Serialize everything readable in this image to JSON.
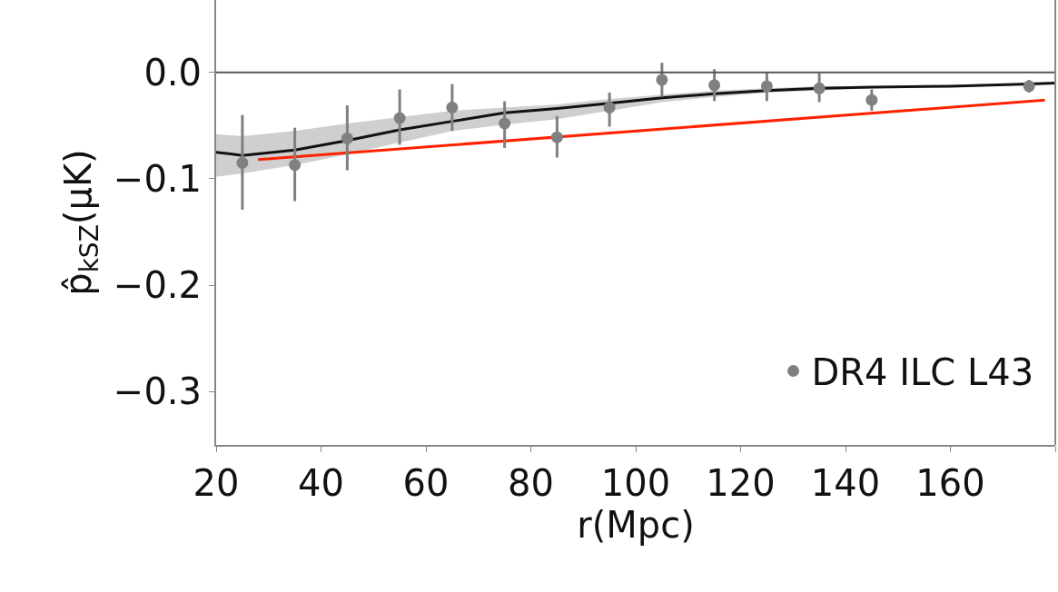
{
  "chart_data": {
    "type": "scatter",
    "ylabel": "p̂$_{kSZ}$(μK)",
    "xlabel": "r(Mpc)",
    "xlim": [
      20,
      180
    ],
    "xticks": [
      20,
      40,
      60,
      80,
      100,
      120,
      140,
      160,
      {
        "value": 180,
        "label": null
      }
    ],
    "ylim": [
      -0.35,
      0.068
    ],
    "yticks": [
      {
        "value": -0.3,
        "label": "−0.3"
      },
      {
        "value": -0.2,
        "label": "−0.2"
      },
      {
        "value": -0.1,
        "label": "−0.1"
      },
      {
        "value": 0,
        "label": "0.0"
      }
    ],
    "grid": false,
    "legend": "bottom right",
    "marker": "circle",
    "ref_lines": [
      {
        "axis": "y",
        "value": 0,
        "color": "#555555"
      }
    ],
    "series": [
      {
        "type": "line",
        "color": "#111111",
        "marker": "none",
        "x": [
          20,
          25,
          35,
          45,
          55,
          65,
          75,
          85,
          95,
          105,
          115,
          125,
          135,
          145,
          160,
          175,
          180
        ],
        "values": [
          -0.075,
          -0.078,
          -0.073,
          -0.064,
          -0.054,
          -0.046,
          -0.038,
          -0.034,
          -0.029,
          -0.024,
          -0.02,
          -0.017,
          -0.015,
          -0.014,
          -0.013,
          -0.011,
          -0.01
        ],
        "lower": [
          -0.098,
          -0.095,
          -0.087,
          -0.077,
          -0.066,
          -0.055,
          -0.049,
          -0.044,
          -0.036,
          -0.028,
          -0.023,
          -0.019,
          -0.017,
          -0.015,
          -0.014,
          -0.012,
          -0.011
        ],
        "upper": [
          -0.058,
          -0.06,
          -0.055,
          -0.048,
          -0.042,
          -0.036,
          -0.033,
          -0.03,
          -0.025,
          -0.021,
          -0.017,
          -0.015,
          -0.013,
          -0.013,
          -0.012,
          -0.01,
          -0.009
        ]
      },
      {
        "type": "line",
        "color": "#ff2200",
        "marker": "none",
        "x": [
          28,
          178
        ],
        "values": [
          -0.082,
          -0.026
        ]
      },
      {
        "name": "DR4 ILC L43",
        "color": "#808080",
        "x": [
          25,
          35,
          45,
          55,
          65,
          75,
          85,
          95,
          105,
          115,
          125,
          135,
          145,
          175
        ],
        "values": [
          -0.085,
          -0.087,
          -0.062,
          -0.043,
          -0.033,
          -0.048,
          -0.061,
          -0.033,
          -0.007,
          -0.012,
          -0.013,
          -0.015,
          -0.026,
          -0.013
        ],
        "errors": [
          [
            -0.129,
            -0.04
          ],
          [
            -0.121,
            -0.052
          ],
          [
            -0.092,
            -0.031
          ],
          [
            -0.068,
            -0.016
          ],
          [
            -0.055,
            -0.011
          ],
          [
            -0.071,
            -0.027
          ],
          [
            -0.08,
            -0.041
          ],
          [
            -0.051,
            -0.019
          ],
          [
            -0.023,
            0.009
          ],
          [
            -0.027,
            0.003
          ],
          [
            -0.027,
            0
          ],
          [
            -0.028,
            -0.001
          ],
          [
            -0.036,
            -0.016
          ],
          [
            -0.019,
            -0.007
          ]
        ]
      }
    ]
  }
}
